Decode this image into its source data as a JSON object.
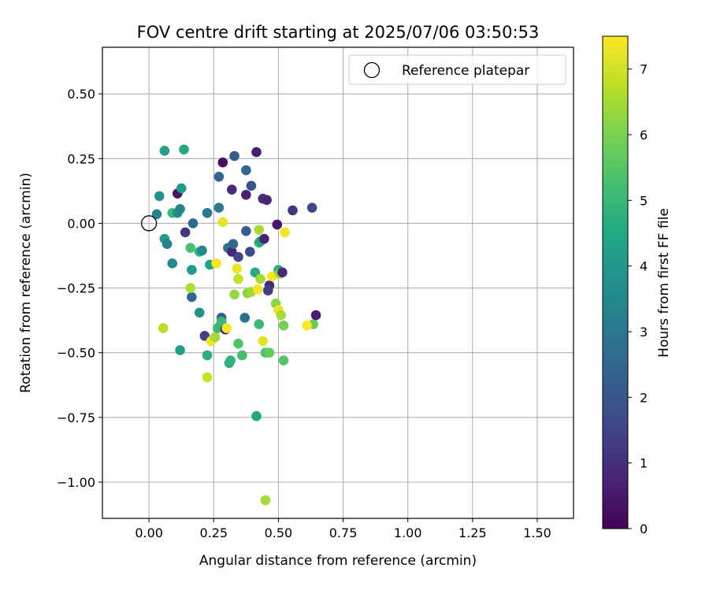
{
  "chart_data": {
    "type": "scatter",
    "title": "FOV centre drift starting at 2025/07/06 03:50:53",
    "xlabel": "Angular distance from reference (arcmin)",
    "ylabel": "Rotation from reference (arcmin)",
    "xlim": [
      -0.18,
      1.64
    ],
    "ylim": [
      -1.14,
      0.68
    ],
    "xticks": [
      0.0,
      0.25,
      0.5,
      0.75,
      1.0,
      1.25,
      1.5
    ],
    "xtick_labels": [
      "0.00",
      "0.25",
      "0.50",
      "0.75",
      "1.00",
      "1.25",
      "1.50"
    ],
    "yticks": [
      0.5,
      0.25,
      0.0,
      -0.25,
      -0.5,
      -0.75,
      -1.0
    ],
    "ytick_labels": [
      "0.50",
      "0.25",
      "0.00",
      "−0.25",
      "−0.50",
      "−0.75",
      "−1.00"
    ],
    "grid": true,
    "legend": {
      "position": "top-right",
      "entries": [
        "Reference platepar"
      ]
    },
    "reference_point": {
      "x": 0.0,
      "y": 0.0,
      "label": "Reference platepar"
    },
    "colorbar": {
      "label": "Hours from first FF file",
      "colormap": "viridis",
      "range": [
        0,
        7.5
      ],
      "ticks": [
        0,
        1,
        2,
        3,
        4,
        5,
        6,
        7
      ],
      "tick_labels": [
        "0",
        "1",
        "2",
        "3",
        "4",
        "5",
        "6",
        "7"
      ]
    },
    "points": [
      {
        "x": 0.03,
        "y": 0.035,
        "h": 3.3
      },
      {
        "x": 0.04,
        "y": 0.105,
        "h": 3.8
      },
      {
        "x": 0.06,
        "y": 0.28,
        "h": 4.2
      },
      {
        "x": 0.06,
        "y": -0.06,
        "h": 4.1
      },
      {
        "x": 0.07,
        "y": -0.08,
        "h": 3.2
      },
      {
        "x": 0.09,
        "y": 0.04,
        "h": 5.1
      },
      {
        "x": 0.09,
        "y": -0.155,
        "h": 3.5
      },
      {
        "x": 0.11,
        "y": 0.115,
        "h": 0.4
      },
      {
        "x": 0.11,
        "y": 0.04,
        "h": 3.6
      },
      {
        "x": 0.12,
        "y": 0.055,
        "h": 3.4
      },
      {
        "x": 0.125,
        "y": 0.135,
        "h": 4.0
      },
      {
        "x": 0.135,
        "y": 0.285,
        "h": 4.5
      },
      {
        "x": 0.14,
        "y": -0.035,
        "h": 1.2
      },
      {
        "x": 0.16,
        "y": -0.095,
        "h": 5.3
      },
      {
        "x": 0.165,
        "y": -0.18,
        "h": 4.1
      },
      {
        "x": 0.165,
        "y": -0.285,
        "h": 2.6
      },
      {
        "x": 0.17,
        "y": 0.0,
        "h": 2.5
      },
      {
        "x": 0.195,
        "y": -0.11,
        "h": 4.9
      },
      {
        "x": 0.205,
        "y": -0.105,
        "h": 3.5
      },
      {
        "x": 0.225,
        "y": 0.04,
        "h": 3.0
      },
      {
        "x": 0.235,
        "y": -0.16,
        "h": 4.3
      },
      {
        "x": 0.27,
        "y": 0.18,
        "h": 2.4
      },
      {
        "x": 0.27,
        "y": 0.06,
        "h": 3.1
      },
      {
        "x": 0.285,
        "y": 0.235,
        "h": 0.3
      },
      {
        "x": 0.285,
        "y": 0.005,
        "h": 7.2
      },
      {
        "x": 0.305,
        "y": -0.095,
        "h": 2.8
      },
      {
        "x": 0.32,
        "y": 0.13,
        "h": 0.9
      },
      {
        "x": 0.32,
        "y": -0.11,
        "h": 0.8
      },
      {
        "x": 0.325,
        "y": -0.08,
        "h": 2.5
      },
      {
        "x": 0.33,
        "y": 0.26,
        "h": 2.1
      },
      {
        "x": 0.345,
        "y": -0.13,
        "h": 1.5
      },
      {
        "x": 0.34,
        "y": -0.175,
        "h": 7.3
      },
      {
        "x": 0.345,
        "y": -0.215,
        "h": 6.8
      },
      {
        "x": 0.375,
        "y": 0.205,
        "h": 2.5
      },
      {
        "x": 0.375,
        "y": 0.11,
        "h": 0.7
      },
      {
        "x": 0.375,
        "y": -0.03,
        "h": 2.2
      },
      {
        "x": 0.39,
        "y": -0.11,
        "h": 1.7
      },
      {
        "x": 0.395,
        "y": 0.145,
        "h": 2.0
      },
      {
        "x": 0.415,
        "y": 0.275,
        "h": 0.6
      },
      {
        "x": 0.41,
        "y": -0.19,
        "h": 4.6
      },
      {
        "x": 0.425,
        "y": -0.025,
        "h": 6.5
      },
      {
        "x": 0.425,
        "y": -0.075,
        "h": 5.0
      },
      {
        "x": 0.43,
        "y": -0.07,
        "h": 4.4
      },
      {
        "x": 0.44,
        "y": 0.095,
        "h": 1.0
      },
      {
        "x": 0.445,
        "y": -0.06,
        "h": 0.7
      },
      {
        "x": 0.455,
        "y": 0.09,
        "h": 0.8
      },
      {
        "x": 0.465,
        "y": -0.24,
        "h": 0.9
      },
      {
        "x": 0.46,
        "y": -0.26,
        "h": 1.4
      },
      {
        "x": 0.475,
        "y": -0.205,
        "h": 7.4
      },
      {
        "x": 0.495,
        "y": -0.005,
        "h": 0.5
      },
      {
        "x": 0.5,
        "y": -0.18,
        "h": 4.8
      },
      {
        "x": 0.505,
        "y": -0.195,
        "h": 6.4
      },
      {
        "x": 0.515,
        "y": -0.19,
        "h": 0.9
      },
      {
        "x": 0.525,
        "y": -0.035,
        "h": 7.4
      },
      {
        "x": 0.555,
        "y": 0.05,
        "h": 1.1
      },
      {
        "x": 0.63,
        "y": 0.06,
        "h": 1.6
      },
      {
        "x": 0.635,
        "y": -0.39,
        "h": 5.8
      },
      {
        "x": 0.645,
        "y": -0.355,
        "h": 0.6
      },
      {
        "x": 0.61,
        "y": -0.395,
        "h": 7.5
      },
      {
        "x": 0.16,
        "y": -0.25,
        "h": 6.6
      },
      {
        "x": 0.195,
        "y": -0.345,
        "h": 3.8
      },
      {
        "x": 0.215,
        "y": -0.435,
        "h": 1.4
      },
      {
        "x": 0.225,
        "y": -0.51,
        "h": 4.7
      },
      {
        "x": 0.225,
        "y": -0.595,
        "h": 6.9
      },
      {
        "x": 0.12,
        "y": -0.49,
        "h": 4.1
      },
      {
        "x": 0.055,
        "y": -0.405,
        "h": 6.7
      },
      {
        "x": 0.24,
        "y": -0.455,
        "h": 7.3
      },
      {
        "x": 0.255,
        "y": -0.44,
        "h": 6.5
      },
      {
        "x": 0.26,
        "y": -0.155,
        "h": 7.4
      },
      {
        "x": 0.265,
        "y": -0.405,
        "h": 5.2
      },
      {
        "x": 0.275,
        "y": -0.395,
        "h": 4.9
      },
      {
        "x": 0.28,
        "y": -0.365,
        "h": 2.2
      },
      {
        "x": 0.28,
        "y": -0.38,
        "h": 5.0
      },
      {
        "x": 0.295,
        "y": -0.41,
        "h": 0.5
      },
      {
        "x": 0.3,
        "y": -0.405,
        "h": 7.5
      },
      {
        "x": 0.31,
        "y": -0.54,
        "h": 4.6
      },
      {
        "x": 0.315,
        "y": -0.53,
        "h": 4.9
      },
      {
        "x": 0.33,
        "y": -0.275,
        "h": 6.3
      },
      {
        "x": 0.345,
        "y": -0.465,
        "h": 5.4
      },
      {
        "x": 0.36,
        "y": -0.51,
        "h": 5.2
      },
      {
        "x": 0.37,
        "y": -0.365,
        "h": 2.7
      },
      {
        "x": 0.38,
        "y": -0.27,
        "h": 6.2
      },
      {
        "x": 0.395,
        "y": -0.265,
        "h": 6.4
      },
      {
        "x": 0.415,
        "y": -0.745,
        "h": 4.4
      },
      {
        "x": 0.42,
        "y": -0.255,
        "h": 7.4
      },
      {
        "x": 0.425,
        "y": -0.39,
        "h": 5.1
      },
      {
        "x": 0.43,
        "y": -0.215,
        "h": 6.5
      },
      {
        "x": 0.44,
        "y": -0.455,
        "h": 7.2
      },
      {
        "x": 0.45,
        "y": -0.5,
        "h": 5.3
      },
      {
        "x": 0.45,
        "y": -1.07,
        "h": 6.5
      },
      {
        "x": 0.465,
        "y": -0.5,
        "h": 5.7
      },
      {
        "x": 0.49,
        "y": -0.31,
        "h": 6.2
      },
      {
        "x": 0.5,
        "y": -0.335,
        "h": 7.3
      },
      {
        "x": 0.51,
        "y": -0.355,
        "h": 6.5
      },
      {
        "x": 0.52,
        "y": -0.395,
        "h": 5.9
      },
      {
        "x": 0.52,
        "y": -0.53,
        "h": 5.5
      }
    ]
  }
}
